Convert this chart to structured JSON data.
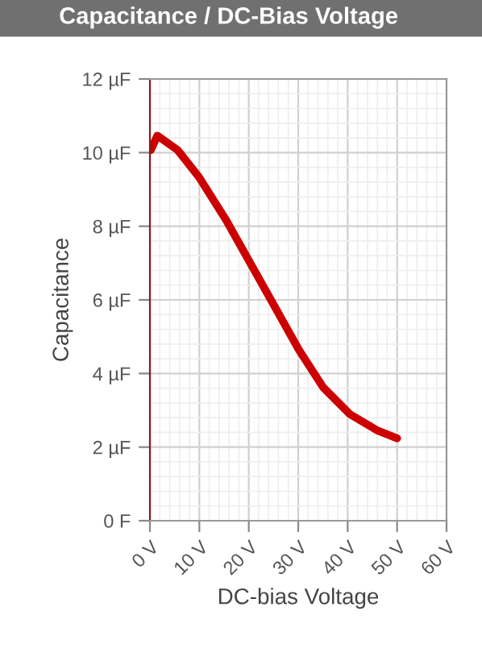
{
  "chart_data": {
    "type": "line",
    "title": "Capacitance / DC-Bias Voltage",
    "xlabel": "DC-bias Voltage",
    "ylabel": "Capacitance",
    "x": [
      0.2,
      1.5,
      5.6,
      9.9,
      15.4,
      20.3,
      25.2,
      30.1,
      35,
      40.4,
      45.9,
      50
    ],
    "series": [
      {
        "color": "#cc0000",
        "values": [
          10.07,
          10.46,
          10.07,
          9.34,
          8.17,
          7.0,
          5.83,
          4.65,
          3.63,
          2.9,
          2.46,
          2.24
        ]
      }
    ],
    "xlim": [
      0,
      60
    ],
    "ylim": [
      0,
      12
    ],
    "xticks": [
      {
        "value": 0,
        "label": "0 V"
      },
      {
        "value": 10,
        "label": "10 V"
      },
      {
        "value": 20,
        "label": "20 V"
      },
      {
        "value": 30,
        "label": "30 V"
      },
      {
        "value": 40,
        "label": "40 V"
      },
      {
        "value": 50,
        "label": "50 V"
      },
      {
        "value": 60,
        "label": "60 V"
      }
    ],
    "yticks": [
      {
        "value": 0,
        "label": "0 F"
      },
      {
        "value": 2,
        "label": "2 µF"
      },
      {
        "value": 4,
        "label": "4 µF"
      },
      {
        "value": 6,
        "label": "6 µF"
      },
      {
        "value": 8,
        "label": "8 µF"
      },
      {
        "value": 10,
        "label": "10 µF"
      },
      {
        "value": 12,
        "label": "12 µF"
      }
    ],
    "grid": true,
    "legend": false,
    "marker": "none",
    "line_style": "solid"
  }
}
